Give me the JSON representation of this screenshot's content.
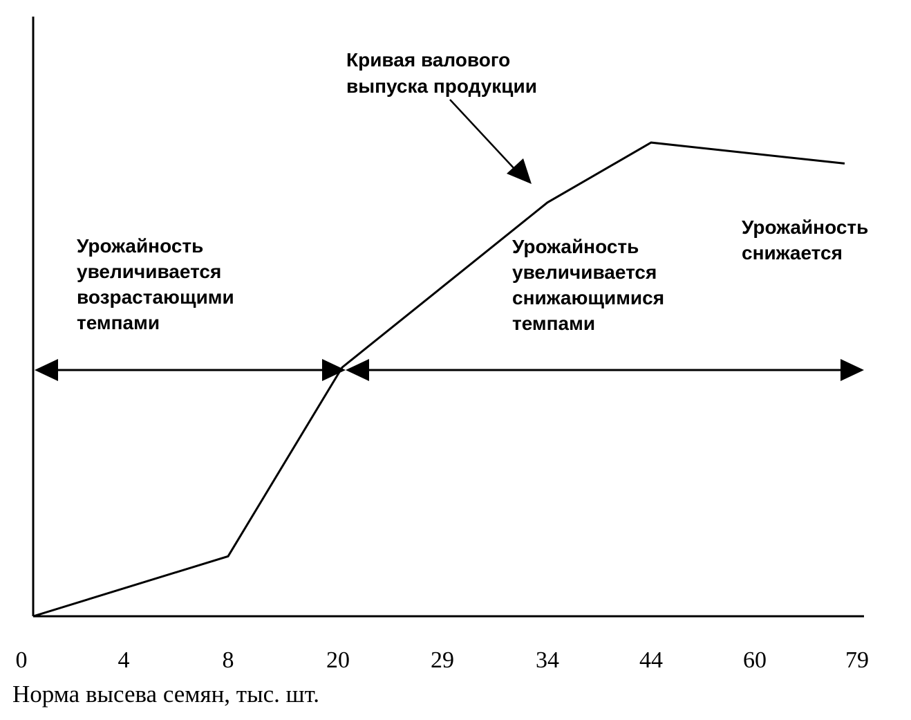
{
  "chart_data": {
    "type": "line",
    "xlabel": "Норма высева семян, тыс. шт.",
    "ylabel": "",
    "x_ticks": [
      "0",
      "4",
      "8",
      "20",
      "29",
      "34",
      "44",
      "60",
      "79"
    ],
    "series": [
      {
        "name": "Кривая валового выпуска продукции",
        "points": [
          {
            "x": "0",
            "y": 0.0
          },
          {
            "x": "8",
            "y": 10.0
          },
          {
            "x": "20",
            "y": 41.5
          },
          {
            "x": "34",
            "y": 69.0
          },
          {
            "x": "44",
            "y": 79.0
          },
          {
            "x": "79",
            "y": 75.5
          }
        ]
      }
    ],
    "annotations": {
      "curve_label": "Кривая валового\nвыпуска продукции",
      "region_increasing_rates": "Урожайность\nувеличивается\nвозрастающими\nтемпами",
      "region_decreasing_rates": "Урожайность\nувеличивается\nснижающимися\nтемпами",
      "region_declining": "Урожайность\nснижается"
    },
    "grid": false,
    "legend": "none"
  },
  "colors": {
    "ink": "#000000",
    "background": "#ffffff"
  }
}
